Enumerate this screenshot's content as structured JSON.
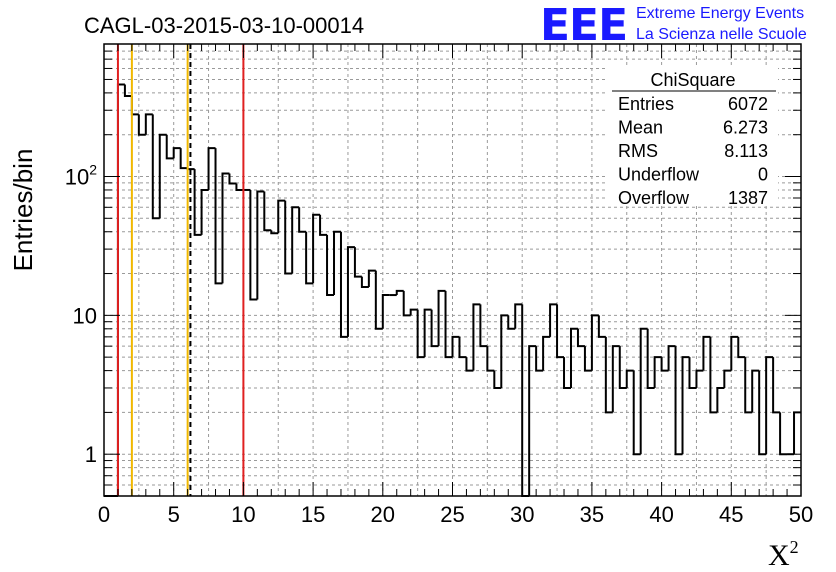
{
  "chart_data": {
    "type": "histogram",
    "title": "CAGL-03-2015-03-10-00014",
    "xlabel": "X²",
    "xlabel_base": "X",
    "xlabel_sup": "2",
    "ylabel": "Entries/bin",
    "xlim": [
      0,
      50
    ],
    "ylim": [
      0.5,
      900
    ],
    "yscale": "log",
    "grid": true,
    "bin_width": 0.5,
    "x_ticks": [
      0,
      5,
      10,
      15,
      20,
      25,
      30,
      35,
      40,
      45,
      50
    ],
    "x_tick_labels": [
      "0",
      "5",
      "10",
      "15",
      "20",
      "25",
      "30",
      "35",
      "40",
      "45",
      "50"
    ],
    "y_major_ticks": [
      1,
      10,
      100
    ],
    "y_tick_labels": [
      {
        "value": 1,
        "base": "1",
        "sup": ""
      },
      {
        "value": 10,
        "base": "10",
        "sup": ""
      },
      {
        "value": 100,
        "base": "10",
        "sup": "2"
      }
    ],
    "values": [
      0.4,
      0.4,
      460,
      380,
      280,
      200,
      280,
      50,
      200,
      135,
      160,
      115,
      113,
      38,
      80,
      160,
      17,
      105,
      89,
      80,
      80,
      13,
      78,
      41,
      39,
      67,
      20,
      60,
      40,
      17,
      53,
      38,
      14,
      40,
      7,
      31,
      19,
      16,
      21,
      8,
      14,
      14,
      15,
      10,
      11,
      5,
      11,
      6,
      15,
      5,
      7,
      5,
      4,
      12,
      6,
      4,
      3,
      10,
      8,
      12,
      0.4,
      6,
      4,
      7,
      12,
      5,
      3,
      8,
      6,
      4,
      10,
      7,
      2,
      6,
      3,
      4,
      1,
      8,
      3,
      5,
      4,
      6,
      1,
      5,
      3,
      4,
      7,
      2,
      3,
      4,
      7,
      5,
      2,
      4,
      1,
      5,
      2,
      1,
      1,
      2
    ],
    "vertical_lines": [
      {
        "x": 1,
        "color": "#e02020",
        "style": "solid"
      },
      {
        "x": 2,
        "color": "#f0b800",
        "style": "solid"
      },
      {
        "x": 6,
        "color": "#f0b800",
        "style": "solid"
      },
      {
        "x": 6.2,
        "color": "#000000",
        "style": "dashed"
      },
      {
        "x": 10,
        "color": "#e02020",
        "style": "solid"
      }
    ],
    "stats_box": {
      "title": "ChiSquare",
      "rows": [
        {
          "label": "Entries",
          "value": "6072"
        },
        {
          "label": "Mean",
          "value": "6.273"
        },
        {
          "label": "RMS",
          "value": "8.113"
        },
        {
          "label": "Underflow",
          "value": "0"
        },
        {
          "label": "Overflow",
          "value": "1387"
        }
      ]
    }
  },
  "logo": {
    "text": "EEE",
    "line1": "Extreme Energy Events",
    "line2": "La Scienza nelle Scuole"
  },
  "colors": {
    "histogram": "#000000",
    "grid": "#9a9a9a",
    "logo": "#1a1aff"
  }
}
